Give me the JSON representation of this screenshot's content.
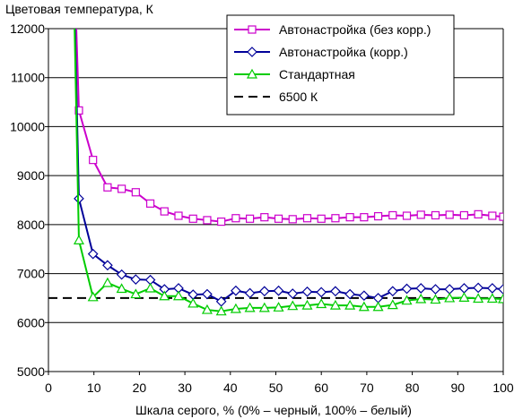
{
  "chart_data": {
    "type": "line",
    "ylabel": "Цветовая температура, К",
    "xlabel": "Шкала серого, % (0% – черный, 100% – белый)",
    "xlim": [
      0,
      100
    ],
    "ylim": [
      5000,
      12000
    ],
    "xticks": [
      0,
      10,
      20,
      30,
      40,
      50,
      60,
      70,
      80,
      90,
      100
    ],
    "yticks": [
      5000,
      6000,
      7000,
      8000,
      9000,
      10000,
      11000,
      12000
    ],
    "grid": "horizontal",
    "legend_position": "top-right",
    "series": [
      {
        "name": "Автонастройка (без корр.)",
        "color": "#cc00cc",
        "marker": "square",
        "dash": "solid",
        "x": [
          5.1,
          6.7,
          9.8,
          13,
          16.1,
          19.2,
          22.4,
          25.5,
          28.6,
          31.8,
          34.9,
          38.0,
          41.2,
          44.3,
          47.5,
          50.6,
          53.7,
          56.9,
          60.0,
          63.1,
          66.3,
          69.4,
          72.5,
          75.7,
          78.8,
          81.9,
          85.1,
          88.2,
          91.4,
          94.5,
          97.6,
          100
        ],
        "y": [
          15000,
          10330,
          9320,
          8760,
          8730,
          8660,
          8430,
          8270,
          8180,
          8120,
          8090,
          8060,
          8130,
          8120,
          8150,
          8120,
          8110,
          8130,
          8120,
          8130,
          8150,
          8150,
          8170,
          8190,
          8180,
          8200,
          8190,
          8200,
          8190,
          8210,
          8180,
          8160
        ]
      },
      {
        "name": "Автонастройка (корр.)",
        "color": "#000099",
        "marker": "diamond",
        "dash": "solid",
        "x": [
          5.1,
          6.7,
          9.8,
          13,
          16.1,
          19.2,
          22.4,
          25.5,
          28.6,
          31.8,
          34.9,
          38.0,
          41.2,
          44.3,
          47.5,
          50.6,
          53.7,
          56.9,
          60.0,
          63.1,
          66.3,
          69.4,
          72.5,
          75.7,
          78.8,
          81.9,
          85.1,
          88.2,
          91.4,
          94.5,
          97.6,
          100
        ],
        "y": [
          15000,
          8530,
          7400,
          7170,
          6980,
          6880,
          6870,
          6680,
          6700,
          6570,
          6580,
          6430,
          6650,
          6600,
          6640,
          6650,
          6590,
          6630,
          6620,
          6640,
          6580,
          6550,
          6500,
          6640,
          6690,
          6700,
          6680,
          6680,
          6700,
          6710,
          6700,
          6680
        ]
      },
      {
        "name": "Стандартная",
        "color": "#00cc00",
        "marker": "triangle",
        "dash": "solid",
        "x": [
          5.1,
          6.7,
          9.8,
          13,
          16.1,
          19.2,
          22.4,
          25.5,
          28.6,
          31.8,
          34.9,
          38.0,
          41.2,
          44.3,
          47.5,
          50.6,
          53.7,
          56.9,
          60.0,
          63.1,
          66.3,
          69.4,
          72.5,
          75.7,
          78.8,
          81.9,
          85.1,
          88.2,
          91.4,
          94.5,
          97.6,
          100
        ],
        "y": [
          15000,
          7680,
          6520,
          6810,
          6690,
          6580,
          6700,
          6540,
          6540,
          6390,
          6260,
          6230,
          6280,
          6300,
          6300,
          6310,
          6340,
          6350,
          6380,
          6350,
          6350,
          6320,
          6320,
          6360,
          6450,
          6480,
          6470,
          6500,
          6510,
          6490,
          6490,
          6480
        ]
      },
      {
        "name": "6500 К",
        "color": "#000000",
        "marker": "none",
        "dash": "dashed",
        "x": [
          0,
          100
        ],
        "y": [
          6500,
          6500
        ]
      }
    ]
  }
}
